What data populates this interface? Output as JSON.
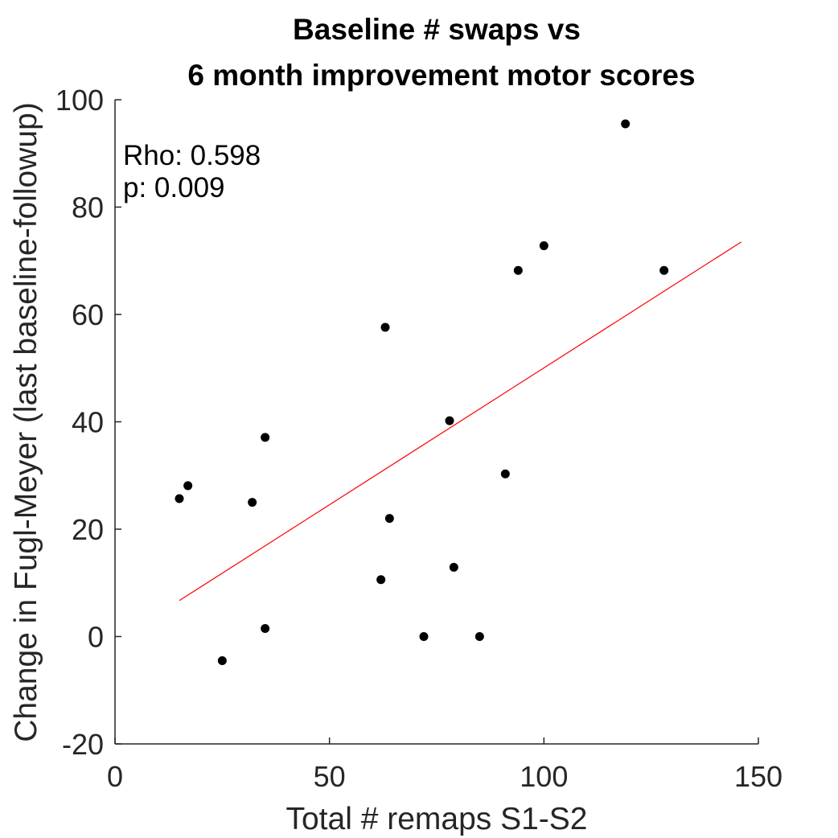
{
  "chart_data": {
    "type": "scatter",
    "title": [
      "Baseline # swaps vs",
      "6 month improvement motor scores"
    ],
    "xlabel": "Total # remaps S1-S2",
    "ylabel": "Change in Fugl-Meyer (last baseline-followup)",
    "xlim": [
      0,
      150
    ],
    "ylim": [
      -20,
      100
    ],
    "xticks": [
      0,
      50,
      100,
      150
    ],
    "yticks": [
      -20,
      0,
      20,
      40,
      60,
      80,
      100
    ],
    "annotations": [
      "Rho: 0.598",
      "p: 0.009"
    ],
    "marker_color": "#000000",
    "points": [
      {
        "x": 15,
        "y": 25.7
      },
      {
        "x": 17,
        "y": 28.1
      },
      {
        "x": 25,
        "y": -4.5
      },
      {
        "x": 32,
        "y": 25.0
      },
      {
        "x": 35,
        "y": 37.1
      },
      {
        "x": 35,
        "y": 1.5
      },
      {
        "x": 62,
        "y": 10.6
      },
      {
        "x": 63,
        "y": 57.6
      },
      {
        "x": 64,
        "y": 22.0
      },
      {
        "x": 72,
        "y": 0.0
      },
      {
        "x": 78,
        "y": 40.2
      },
      {
        "x": 79,
        "y": 12.9
      },
      {
        "x": 85,
        "y": 0.0
      },
      {
        "x": 91,
        "y": 30.3
      },
      {
        "x": 94,
        "y": 68.2
      },
      {
        "x": 100,
        "y": 72.8
      },
      {
        "x": 119,
        "y": 95.5
      },
      {
        "x": 128,
        "y": 68.2
      }
    ],
    "fit_line": {
      "color": "#ff0000",
      "x": [
        15,
        146
      ],
      "y": [
        6.7,
        73.5
      ]
    }
  }
}
